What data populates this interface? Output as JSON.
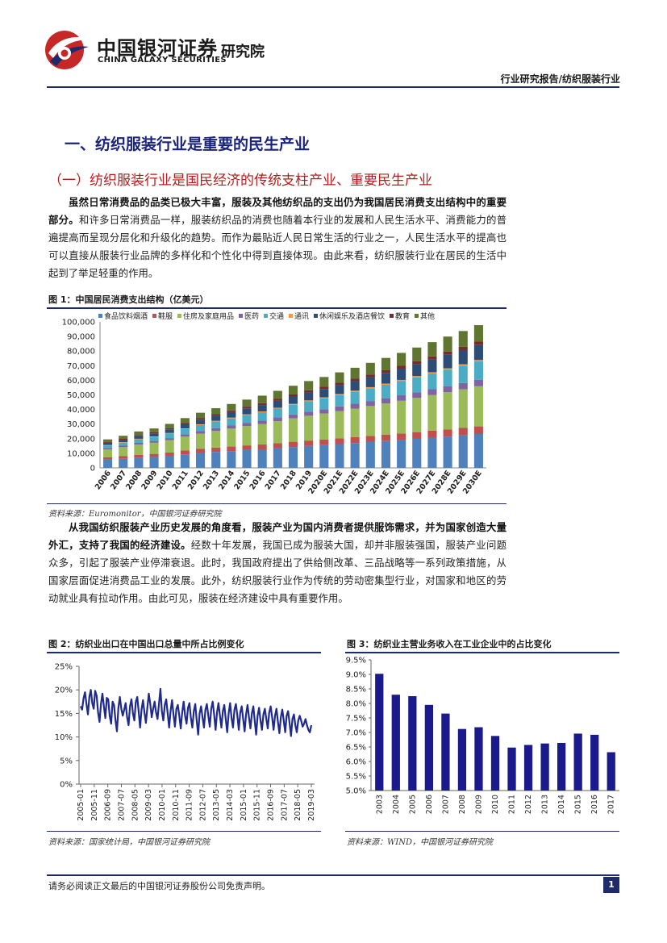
{
  "header": {
    "logo_cn": "中国银河证券",
    "logo_en": "CHINA GALAXY SECURITIES",
    "logo_inst": "研究院",
    "report_type": "行业研究报告/纺织服装行业"
  },
  "section1": {
    "title": "一、纺织服装行业是重要的民生产业",
    "subtitle": "（一）纺织服装行业是国民经济的传统支柱产业、重要民生产业",
    "para1_bold": "虽然日常消费品的品类已极大丰富，服装及其他纺织品的支出仍为我国居民消费支出结构中的重要部分。",
    "para1_rest": "和许多日常消费品一样，服装纺织品的消费也随着本行业的发展和人民生活水平、消费能力的普遍提高而呈现分层化和升级化的趋势。而作为最贴近人民日常生活的行业之一，人民生活水平的提高也可以直接从服装行业品牌的多样化和个性化中得到直接体现。由此来看，纺织服装行业在居民的生活中起到了举足轻重的作用。",
    "para2_bold": "从我国纺织服装产业历史发展的角度看，服装产业为国内消费者提供服饰需求，并为国家创造大量外汇，支持了我国的经济建设。",
    "para2_rest": "经数十年发展，我国已成为服装大国，却并非服装强国，服装产业问题众多，引起了服装产业停滞衰退。此时，我国政府提出了供给侧改革、三品战略等一系列政策措施，从国家层面促进消费品工业的发展。此外，纺织服装行业作为传统的劳动密集型行业，对国家和地区的劳动就业具有拉动作用。由此可见，服装在经济建设中具有重要作用。"
  },
  "figure1": {
    "title": "图 1：中国居民消费支出结构（亿美元）",
    "source": "资料来源：Euromonitor，中国银河证券研究院"
  },
  "figure2": {
    "title": "图 2：纺织业出口在中国出口总量中所占比例变化",
    "source": "资料来源：国家统计局，中国银河证券研究院"
  },
  "figure3": {
    "title": "图 3：纺织业主营业务收入在工业企业中的占比变化",
    "source": "资料来源：WIND，中国银河证券研究院"
  },
  "footer": {
    "disclaimer": "请务必阅读正文最后的中国银河证券股份公司免责声明。",
    "page": "1"
  },
  "chart_data": [
    {
      "id": "fig1",
      "type": "bar",
      "stacked": true,
      "title": "图 1：中国居民消费支出结构（亿美元）",
      "categories": [
        "2006",
        "2007",
        "2008",
        "2009",
        "2010",
        "2011",
        "2012",
        "2013",
        "2014",
        "2015",
        "2016",
        "2017",
        "2018",
        "2019",
        "2020E",
        "2021E",
        "2022E",
        "2023E",
        "2024E",
        "2025E",
        "2026E",
        "2027E",
        "2028E",
        "2029E",
        "2030E"
      ],
      "series": [
        {
          "name": "食品饮料烟酒",
          "color": "#4f81bd",
          "values": [
            5600,
            6200,
            7000,
            7500,
            8300,
            9300,
            10200,
            10900,
            11500,
            12200,
            12700,
            13500,
            14300,
            15000,
            15600,
            16300,
            17000,
            17700,
            18400,
            19100,
            19900,
            20700,
            21500,
            22300,
            23200
          ]
        },
        {
          "name": "鞋服",
          "color": "#c0504d",
          "values": [
            1600,
            1800,
            2000,
            2100,
            2300,
            2600,
            2800,
            3000,
            3100,
            3200,
            3300,
            3450,
            3600,
            3700,
            3800,
            3900,
            4000,
            4150,
            4300,
            4450,
            4600,
            4750,
            4900,
            5050,
            5200
          ]
        },
        {
          "name": "住房及家庭用品",
          "color": "#9bbb59",
          "values": [
            5500,
            6200,
            7000,
            7600,
            8400,
            9500,
            10500,
            11400,
            12300,
            13200,
            14000,
            15000,
            16000,
            17000,
            17800,
            18700,
            19600,
            20500,
            21400,
            22400,
            23400,
            24400,
            25400,
            26400,
            27500
          ]
        },
        {
          "name": "医药",
          "color": "#8064a2",
          "values": [
            900,
            1000,
            1150,
            1250,
            1400,
            1600,
            1800,
            1950,
            2100,
            2250,
            2400,
            2550,
            2700,
            2850,
            3000,
            3150,
            3300,
            3450,
            3600,
            3750,
            3900,
            4050,
            4200,
            4350,
            4500
          ]
        },
        {
          "name": "交通",
          "color": "#4bacc6",
          "values": [
            1800,
            2100,
            2450,
            2700,
            3100,
            3600,
            4100,
            4500,
            4900,
            5300,
            5700,
            6100,
            6600,
            7000,
            7400,
            7800,
            8200,
            8700,
            9200,
            9700,
            10200,
            10700,
            11300,
            11900,
            12500
          ]
        },
        {
          "name": "通讯",
          "color": "#f79646",
          "values": [
            300,
            320,
            350,
            370,
            400,
            430,
            460,
            490,
            520,
            550,
            580,
            610,
            640,
            670,
            700,
            730,
            760,
            790,
            820,
            850,
            880,
            910,
            940,
            970,
            1000
          ]
        },
        {
          "name": "休闲娱乐及酒店餐饮",
          "color": "#2c4d75",
          "values": [
            1500,
            1700,
            1950,
            2150,
            2450,
            2800,
            3150,
            3450,
            3750,
            4050,
            4350,
            4700,
            5050,
            5400,
            5700,
            6100,
            6500,
            6900,
            7300,
            7700,
            8200,
            8700,
            9200,
            9700,
            10200
          ]
        },
        {
          "name": "教育",
          "color": "#772c2a",
          "values": [
            500,
            560,
            640,
            690,
            770,
            870,
            960,
            1030,
            1100,
            1170,
            1240,
            1320,
            1400,
            1480,
            1550,
            1630,
            1710,
            1790,
            1870,
            1950,
            2030,
            2110,
            2190,
            2270,
            2350
          ]
        },
        {
          "name": "其他",
          "color": "#5f7530",
          "values": [
            1800,
            2100,
            2400,
            2650,
            3000,
            3400,
            3800,
            4150,
            4500,
            4850,
            5200,
            5550,
            5950,
            6350,
            6700,
            7100,
            7500,
            7950,
            8400,
            8850,
            9300,
            9800,
            10300,
            10800,
            11300
          ]
        }
      ],
      "ylim": [
        0,
        100000
      ],
      "yticks": [
        "0",
        "10,000",
        "20,000",
        "30,000",
        "40,000",
        "50,000",
        "60,000",
        "70,000",
        "80,000",
        "90,000",
        "100,000"
      ]
    },
    {
      "id": "fig2",
      "type": "line",
      "title": "图 2：纺织业出口在中国出口总量中所占比例变化",
      "ylim": [
        0,
        25
      ],
      "yticks": [
        "0%",
        "5%",
        "10%",
        "15%",
        "20%",
        "25%"
      ],
      "xticks": [
        "2005-01",
        "2005-11",
        "2006-09",
        "2007-07",
        "2008-05",
        "2009-03",
        "2010-01",
        "2010-11",
        "2011-09",
        "2012-07",
        "2013-05",
        "2014-03",
        "2015-01",
        "2015-11",
        "2016-09",
        "2017-07",
        "2018-05",
        "2019-03"
      ],
      "color": "#1f2a8f",
      "values": [
        16.5,
        15.8,
        18.2,
        19.5,
        17.0,
        14.8,
        18.5,
        20.0,
        17.2,
        16.0,
        19.8,
        18.8,
        15.2,
        13.2,
        17.0,
        19.2,
        16.5,
        14.0,
        18.3,
        18.0,
        14.5,
        12.8,
        17.5,
        16.8,
        13.5,
        11.2,
        16.2,
        18.5,
        16.0,
        14.5,
        15.8,
        17.2,
        14.2,
        12.5,
        16.5,
        18.0,
        15.0,
        13.5,
        17.5,
        18.5,
        15.5,
        12.0,
        15.8,
        17.8,
        15.2,
        13.0,
        16.2,
        19.2,
        17.0,
        14.2,
        16.0,
        17.5,
        15.2,
        13.8,
        17.0,
        20.2,
        15.5,
        13.5,
        16.8,
        18.0,
        15.0,
        12.0,
        15.5,
        17.8,
        14.8,
        12.2,
        16.0,
        16.8,
        14.5,
        11.8,
        15.2,
        17.5,
        14.5,
        12.8,
        16.2,
        17.2,
        14.0,
        12.0,
        15.5,
        17.0,
        13.5,
        10.5,
        15.0,
        16.5,
        14.2,
        12.0,
        15.8,
        17.0,
        14.5,
        12.2,
        16.0,
        17.5,
        14.8,
        11.5,
        15.2,
        17.2,
        14.5,
        12.0,
        15.5,
        16.8,
        13.8,
        11.0,
        15.0,
        17.2,
        14.0,
        12.0,
        15.8,
        17.0,
        14.5,
        11.5,
        15.2,
        16.5,
        13.8,
        11.2,
        14.8,
        16.8,
        14.2,
        11.8,
        15.0,
        16.5,
        13.5,
        10.5,
        14.5,
        16.2,
        13.5,
        11.5,
        14.8,
        16.0,
        13.8,
        11.8,
        15.2,
        16.5,
        14.2,
        11.5,
        14.5,
        16.0,
        13.2,
        10.8,
        14.2,
        15.8,
        13.5,
        11.0,
        14.5,
        15.5,
        13.0,
        10.2,
        13.8,
        14.8,
        12.5,
        11.0,
        13.5,
        14.5,
        13.5,
        12.2,
        12.8,
        13.8,
        12.5,
        11.5,
        11.0,
        12.5
      ]
    },
    {
      "id": "fig3",
      "type": "bar",
      "title": "图 3：纺织业主营业务收入在工业企业中的占比变化",
      "categories": [
        "2003",
        "2004",
        "2005",
        "2006",
        "2007",
        "2008",
        "2009",
        "2010",
        "2011",
        "2012",
        "2013",
        "2014",
        "2015",
        "2016",
        "2017"
      ],
      "values": [
        9.02,
        8.3,
        8.25,
        7.95,
        7.65,
        7.12,
        7.18,
        6.88,
        6.48,
        6.57,
        6.62,
        6.64,
        6.96,
        6.92,
        6.32
      ],
      "color": "#1a1a8c",
      "ylim": [
        5.0,
        9.5
      ],
      "yticks": [
        "5.0%",
        "5.5%",
        "6.0%",
        "6.5%",
        "7.0%",
        "7.5%",
        "8.0%",
        "8.5%",
        "9.0%",
        "9.5%"
      ]
    }
  ]
}
